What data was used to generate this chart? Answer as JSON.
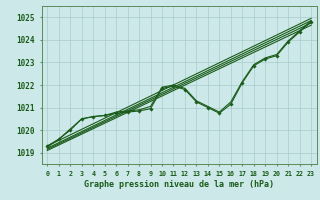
{
  "background_color": "#cce8e8",
  "grid_color": "#aacccc",
  "line_color": "#1a5c1a",
  "title": "Graphe pression niveau de la mer (hPa)",
  "ylabel_ticks": [
    1019,
    1020,
    1021,
    1022,
    1023,
    1024,
    1025
  ],
  "xlim": [
    -0.5,
    23.5
  ],
  "ylim": [
    1018.5,
    1025.5
  ],
  "x_hours": [
    0,
    1,
    2,
    3,
    4,
    5,
    6,
    7,
    8,
    9,
    10,
    11,
    12,
    13,
    14,
    15,
    16,
    17,
    18,
    19,
    20,
    21,
    22,
    23
  ],
  "straight_lines": [
    [
      1019.3,
      1024.95
    ],
    [
      1019.2,
      1024.85
    ],
    [
      1019.15,
      1024.75
    ],
    [
      1019.1,
      1024.65
    ]
  ],
  "marker_line": [
    1019.3,
    1019.6,
    1020.0,
    1020.5,
    1020.6,
    1020.65,
    1020.75,
    1020.8,
    1020.85,
    1020.95,
    1021.85,
    1021.95,
    1021.8,
    1021.25,
    1021.0,
    1020.75,
    1021.15,
    1022.1,
    1022.85,
    1023.15,
    1023.3,
    1023.9,
    1024.35,
    1024.8
  ],
  "extra_line": [
    1019.25,
    1019.6,
    1020.05,
    1020.5,
    1020.6,
    1020.65,
    1020.8,
    1020.85,
    1020.9,
    1021.05,
    1021.9,
    1022.0,
    1021.85,
    1021.3,
    1021.05,
    1020.8,
    1021.25,
    1022.15,
    1022.9,
    1023.2,
    1023.35,
    1023.95,
    1024.4,
    1024.85
  ]
}
